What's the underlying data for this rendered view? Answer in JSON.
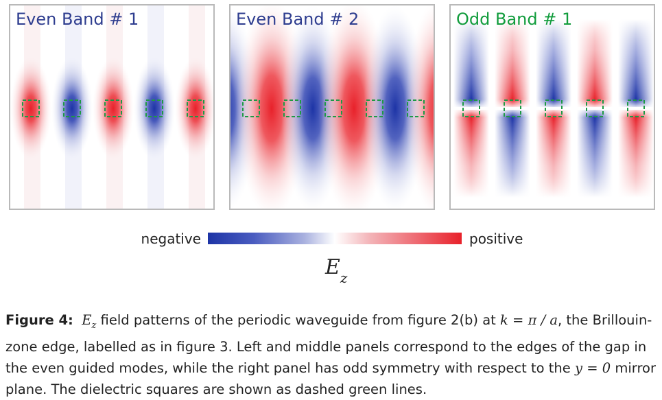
{
  "panels": [
    {
      "title": "Even Band # 1",
      "title_color": "#2e3d8f"
    },
    {
      "title": "Even Band # 2",
      "title_color": "#2e3d8f"
    },
    {
      "title": "Odd Band # 1",
      "title_color": "#119c3c"
    }
  ],
  "colorbar": {
    "negative_label": "negative",
    "positive_label": "positive",
    "negative_color": "#1d34a6",
    "positive_color": "#e8212a",
    "quantity_symbol": "E",
    "quantity_subscript": "z"
  },
  "caption": {
    "label": "Figure 4:",
    "sym_E": "E",
    "sym_z": "z",
    "t1": " field patterns of the periodic waveguide from figure 2(b) at ",
    "k_eq": "k = π / a",
    "t2": ", the Brillouin-zone edge, labelled as in figure 3. Left and middle panels correspond to the edges of the gap in the even guided modes, while the right panel has odd symmetry with respect to the ",
    "y_eq": "y = 0",
    "t3": " mirror plane. The dielectric squares are shown as dashed green lines."
  }
}
